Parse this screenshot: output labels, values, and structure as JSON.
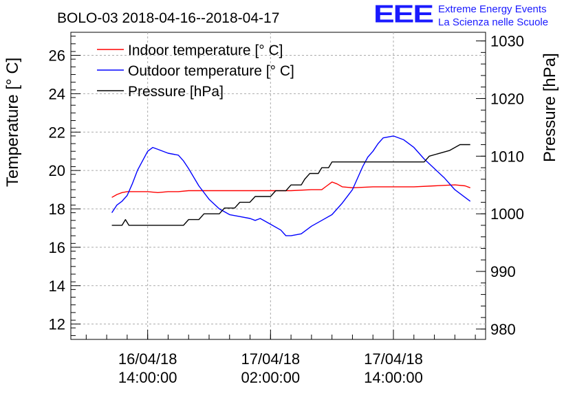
{
  "logo": {
    "mark": "EEE",
    "line1": "Extreme Energy Events",
    "line2": "La Scienza nelle Scuole",
    "color": "#1a1aff"
  },
  "chart_data": {
    "type": "line",
    "title": "BOLO-03 2018-04-16--2018-04-17",
    "ylabel": "Temperature [° C]",
    "ylabel_right": "Pressure [hPa]",
    "ylim": [
      11.2,
      27.2
    ],
    "ylim_right": [
      978.2,
      1031.5
    ],
    "yticks": [
      12,
      14,
      16,
      18,
      20,
      22,
      24,
      26
    ],
    "yticks_right": [
      980,
      990,
      1000,
      1010,
      1020,
      1030
    ],
    "xlim": [
      "2018-04-16 06:30",
      "2018-04-17 23:00"
    ],
    "xticks": [
      {
        "t": "2018-04-16 14:00",
        "line1": "16/04/18",
        "line2": "14:00:00"
      },
      {
        "t": "2018-04-17 02:00",
        "line1": "17/04/18",
        "line2": "02:00:00"
      },
      {
        "t": "2018-04-17 14:00",
        "line1": "17/04/18",
        "line2": "14:00:00"
      }
    ],
    "grid": true,
    "legend_position": "top-left",
    "series": [
      {
        "name": "Indoor temperature [° C]",
        "color": "#ff0000",
        "axis": "left",
        "points": [
          [
            "2018-04-16 10:30",
            18.6
          ],
          [
            "2018-04-16 11:00",
            18.75
          ],
          [
            "2018-04-16 11:30",
            18.85
          ],
          [
            "2018-04-16 12:00",
            18.9
          ],
          [
            "2018-04-16 13:00",
            18.9
          ],
          [
            "2018-04-16 14:00",
            18.9
          ],
          [
            "2018-04-16 15:00",
            18.85
          ],
          [
            "2018-04-16 16:00",
            18.9
          ],
          [
            "2018-04-16 17:00",
            18.9
          ],
          [
            "2018-04-16 18:00",
            18.95
          ],
          [
            "2018-04-16 20:00",
            18.95
          ],
          [
            "2018-04-16 22:00",
            18.95
          ],
          [
            "2018-04-17 00:00",
            18.95
          ],
          [
            "2018-04-17 02:00",
            18.95
          ],
          [
            "2018-04-17 04:00",
            18.95
          ],
          [
            "2018-04-17 06:00",
            19.0
          ],
          [
            "2018-04-17 07:00",
            19.0
          ],
          [
            "2018-04-17 07:30",
            19.2
          ],
          [
            "2018-04-17 08:00",
            19.4
          ],
          [
            "2018-04-17 08:30",
            19.3
          ],
          [
            "2018-04-17 09:00",
            19.15
          ],
          [
            "2018-04-17 10:00",
            19.1
          ],
          [
            "2018-04-17 12:00",
            19.15
          ],
          [
            "2018-04-17 14:00",
            19.15
          ],
          [
            "2018-04-17 16:00",
            19.15
          ],
          [
            "2018-04-17 18:00",
            19.2
          ],
          [
            "2018-04-17 20:00",
            19.25
          ],
          [
            "2018-04-17 21:00",
            19.2
          ],
          [
            "2018-04-17 21:30",
            19.1
          ]
        ]
      },
      {
        "name": "Outdoor temperature [° C]",
        "color": "#0000ff",
        "axis": "left",
        "points": [
          [
            "2018-04-16 10:30",
            17.8
          ],
          [
            "2018-04-16 11:00",
            18.2
          ],
          [
            "2018-04-16 11:30",
            18.4
          ],
          [
            "2018-04-16 12:00",
            18.7
          ],
          [
            "2018-04-16 12:30",
            19.3
          ],
          [
            "2018-04-16 13:00",
            20.0
          ],
          [
            "2018-04-16 13:30",
            20.5
          ],
          [
            "2018-04-16 14:00",
            21.0
          ],
          [
            "2018-04-16 14:30",
            21.2
          ],
          [
            "2018-04-16 15:00",
            21.1
          ],
          [
            "2018-04-16 16:00",
            20.9
          ],
          [
            "2018-04-16 17:00",
            20.8
          ],
          [
            "2018-04-16 17:30",
            20.5
          ],
          [
            "2018-04-16 18:00",
            20.1
          ],
          [
            "2018-04-16 19:00",
            19.2
          ],
          [
            "2018-04-16 20:00",
            18.5
          ],
          [
            "2018-04-16 21:00",
            18.0
          ],
          [
            "2018-04-16 22:00",
            17.7
          ],
          [
            "2018-04-16 23:00",
            17.6
          ],
          [
            "2018-04-17 00:00",
            17.5
          ],
          [
            "2018-04-17 00:30",
            17.4
          ],
          [
            "2018-04-17 01:00",
            17.5
          ],
          [
            "2018-04-17 02:00",
            17.2
          ],
          [
            "2018-04-17 03:00",
            16.9
          ],
          [
            "2018-04-17 03:30",
            16.6
          ],
          [
            "2018-04-17 04:00",
            16.6
          ],
          [
            "2018-04-17 05:00",
            16.7
          ],
          [
            "2018-04-17 06:00",
            17.1
          ],
          [
            "2018-04-17 07:00",
            17.4
          ],
          [
            "2018-04-17 08:00",
            17.7
          ],
          [
            "2018-04-17 09:00",
            18.3
          ],
          [
            "2018-04-17 10:00",
            19.0
          ],
          [
            "2018-04-17 11:00",
            20.2
          ],
          [
            "2018-04-17 11:30",
            20.7
          ],
          [
            "2018-04-17 12:00",
            21.0
          ],
          [
            "2018-04-17 12:30",
            21.4
          ],
          [
            "2018-04-17 13:00",
            21.7
          ],
          [
            "2018-04-17 14:00",
            21.8
          ],
          [
            "2018-04-17 15:00",
            21.6
          ],
          [
            "2018-04-17 16:00",
            21.2
          ],
          [
            "2018-04-17 17:00",
            20.6
          ],
          [
            "2018-04-17 18:00",
            20.1
          ],
          [
            "2018-04-17 19:00",
            19.6
          ],
          [
            "2018-04-17 20:00",
            19.0
          ],
          [
            "2018-04-17 21:00",
            18.6
          ],
          [
            "2018-04-17 21:30",
            18.4
          ]
        ]
      },
      {
        "name": "Pressure [hPa]",
        "color": "#000000",
        "axis": "right",
        "points": [
          [
            "2018-04-16 10:30",
            998.0
          ],
          [
            "2018-04-16 11:30",
            998.0
          ],
          [
            "2018-04-16 11:50",
            999.0
          ],
          [
            "2018-04-16 12:10",
            998.0
          ],
          [
            "2018-04-16 17:30",
            998.0
          ],
          [
            "2018-04-16 18:00",
            999.0
          ],
          [
            "2018-04-16 19:00",
            999.0
          ],
          [
            "2018-04-16 19:30",
            1000.0
          ],
          [
            "2018-04-16 21:00",
            1000.0
          ],
          [
            "2018-04-16 21:30",
            1001.0
          ],
          [
            "2018-04-16 22:30",
            1001.0
          ],
          [
            "2018-04-16 23:00",
            1002.0
          ],
          [
            "2018-04-16 23:59",
            1002.0
          ],
          [
            "2018-04-17 00:30",
            1003.0
          ],
          [
            "2018-04-17 02:00",
            1003.0
          ],
          [
            "2018-04-17 02:30",
            1004.0
          ],
          [
            "2018-04-17 03:30",
            1004.0
          ],
          [
            "2018-04-17 04:00",
            1005.0
          ],
          [
            "2018-04-17 05:00",
            1005.0
          ],
          [
            "2018-04-17 05:20",
            1006.0
          ],
          [
            "2018-04-17 05:50",
            1007.0
          ],
          [
            "2018-04-17 06:40",
            1007.0
          ],
          [
            "2018-04-17 07:00",
            1008.0
          ],
          [
            "2018-04-17 07:40",
            1008.0
          ],
          [
            "2018-04-17 08:00",
            1009.0
          ],
          [
            "2018-04-17 17:00",
            1009.0
          ],
          [
            "2018-04-17 17:30",
            1010.0
          ],
          [
            "2018-04-17 19:30",
            1011.0
          ],
          [
            "2018-04-17 20:30",
            1012.0
          ],
          [
            "2018-04-17 21:30",
            1012.0
          ]
        ]
      }
    ]
  }
}
